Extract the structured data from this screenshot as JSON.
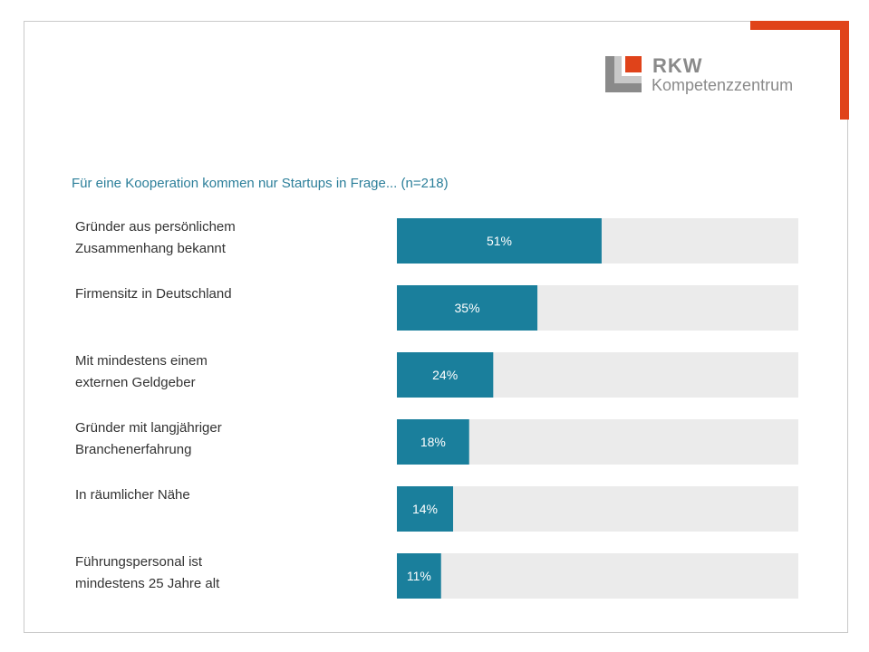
{
  "logo": {
    "title": "RKW",
    "subtitle": "Kompetenzzentrum"
  },
  "colors": {
    "accent": "#e0431a",
    "bar": "#1a7f9c",
    "track": "#ebebeb",
    "title": "#2c7f9a",
    "label": "#333333",
    "logo_gray": "#8a8a8a"
  },
  "chart_data": {
    "type": "bar",
    "orientation": "horizontal",
    "title": "Für eine Kooperation kommen nur Startups in Frage... (n=218)",
    "xlim": [
      0,
      100
    ],
    "categories": [
      [
        "Gründer aus persönlichem",
        "Zusammenhang bekannt"
      ],
      [
        "Firmensitz in Deutschland"
      ],
      [
        "Mit mindestens einem",
        "externen Geldgeber"
      ],
      [
        "Gründer mit langjähriger",
        "Branchenerfahrung"
      ],
      [
        "In räumlicher Nähe"
      ],
      [
        "Führungspersonal ist",
        "mindestens 25 Jahre alt"
      ]
    ],
    "values": [
      51,
      35,
      24,
      18,
      14,
      11
    ],
    "data_labels": [
      "51%",
      "35%",
      "24%",
      "18%",
      "14%",
      "11%"
    ]
  }
}
